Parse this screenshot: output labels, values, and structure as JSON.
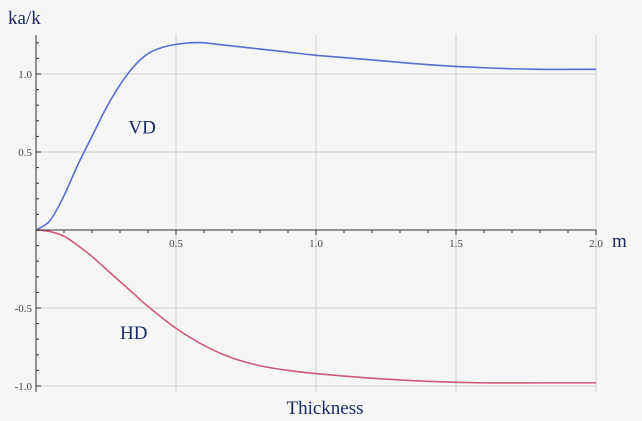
{
  "chart_data": {
    "type": "line",
    "title": "",
    "xlabel": "Thickness",
    "ylabel": "ka/k",
    "x_unit": "m",
    "xlim": [
      0,
      2.0
    ],
    "ylim": [
      -1.0,
      1.25
    ],
    "x_ticks": [
      0.5,
      1.0,
      1.5,
      2.0
    ],
    "x_tick_labels": [
      "0.5",
      "1.0",
      "1.5",
      "2.0"
    ],
    "y_ticks": [
      -1.0,
      -0.5,
      0.5,
      1.0
    ],
    "y_tick_labels": [
      "-1.0",
      "-0.5",
      "0.5",
      "1.0"
    ],
    "grid": true,
    "series": [
      {
        "name": "VD",
        "color": "#5a6ed1",
        "x": [
          0,
          0.05,
          0.1,
          0.15,
          0.2,
          0.25,
          0.3,
          0.35,
          0.4,
          0.45,
          0.5,
          0.55,
          0.6,
          0.65,
          0.7,
          0.8,
          0.9,
          1.0,
          1.2,
          1.4,
          1.6,
          1.8,
          2.0
        ],
        "y": [
          0,
          0.06,
          0.22,
          0.42,
          0.6,
          0.78,
          0.93,
          1.05,
          1.13,
          1.17,
          1.19,
          1.2,
          1.2,
          1.19,
          1.18,
          1.16,
          1.14,
          1.12,
          1.09,
          1.06,
          1.04,
          1.03,
          1.03
        ]
      },
      {
        "name": "HD",
        "color": "#d05a78",
        "x": [
          0,
          0.05,
          0.1,
          0.15,
          0.2,
          0.25,
          0.3,
          0.35,
          0.4,
          0.5,
          0.6,
          0.7,
          0.8,
          0.9,
          1.0,
          1.2,
          1.4,
          1.6,
          1.8,
          2.0
        ],
        "y": [
          0,
          -0.01,
          -0.04,
          -0.1,
          -0.17,
          -0.25,
          -0.33,
          -0.41,
          -0.49,
          -0.63,
          -0.74,
          -0.82,
          -0.87,
          -0.9,
          -0.92,
          -0.95,
          -0.97,
          -0.98,
          -0.98,
          -0.98
        ]
      }
    ],
    "annotations": [
      {
        "text": "VD",
        "x": 0.33,
        "y": 0.62
      },
      {
        "text": "HD",
        "x": 0.3,
        "y": -0.7
      }
    ]
  }
}
